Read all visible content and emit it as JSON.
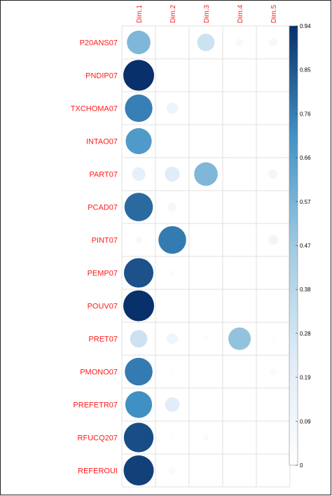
{
  "chart_data": {
    "type": "heatmap",
    "columns": [
      "Dim.1",
      "Dim.2",
      "Dim.3",
      "Dim.4",
      "Dim.5"
    ],
    "rows": [
      "P20ANS07",
      "PNDIP07",
      "TXCHOMA07",
      "INTAO07",
      "PART07",
      "PCAD07",
      "PINT07",
      "PEMP07",
      "POUV07",
      "PRET07",
      "PMONO07",
      "PREFETR07",
      "RFUCQ207",
      "REFEROUI"
    ],
    "values": [
      [
        0.55,
        0.01,
        0.3,
        0.06,
        0.07
      ],
      [
        0.94,
        0.01,
        0.0,
        0.0,
        0.01
      ],
      [
        0.75,
        0.13,
        0.0,
        0.0,
        0.0
      ],
      [
        0.67,
        0.01,
        0.0,
        0.0,
        0.0
      ],
      [
        0.18,
        0.22,
        0.55,
        0.0,
        0.09
      ],
      [
        0.8,
        0.08,
        0.02,
        0.0,
        0.01
      ],
      [
        0.06,
        0.76,
        0.0,
        0.01,
        0.1
      ],
      [
        0.86,
        0.03,
        0.0,
        0.0,
        0.0
      ],
      [
        0.94,
        0.0,
        0.0,
        0.0,
        0.0
      ],
      [
        0.3,
        0.12,
        0.03,
        0.5,
        0.02
      ],
      [
        0.76,
        0.02,
        0.0,
        0.01,
        0.05
      ],
      [
        0.71,
        0.21,
        0.01,
        0.01,
        0.01
      ],
      [
        0.87,
        0.02,
        0.04,
        0.0,
        0.01
      ],
      [
        0.9,
        0.05,
        0.0,
        0.0,
        0.0
      ]
    ],
    "colorbar": {
      "min": 0,
      "max": 0.94,
      "ticks": [
        "0",
        "0.09",
        "0.19",
        "0.28",
        "0.38",
        "0.47",
        "0.57",
        "0.66",
        "0.76",
        "0.85",
        "0.94"
      ],
      "colors": [
        "#ffffff",
        "#deebf7",
        "#9ecae1",
        "#4292c6",
        "#08306b"
      ]
    },
    "grid": true,
    "legend": "right"
  }
}
